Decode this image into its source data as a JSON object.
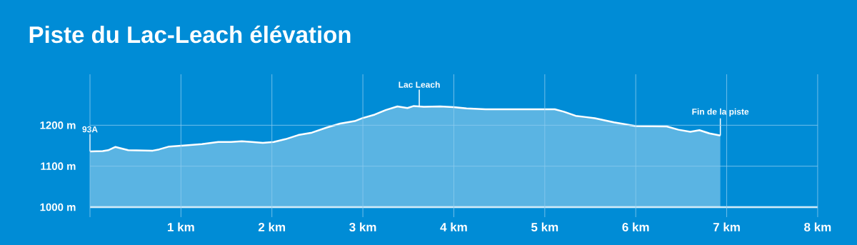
{
  "chart_data": {
    "type": "area",
    "title": "Piste du Lac-Leach élévation",
    "x": [
      0,
      0.14,
      0.2,
      0.28,
      0.42,
      0.69,
      0.76,
      0.87,
      1.0,
      1.23,
      1.41,
      1.55,
      1.67,
      1.78,
      1.9,
      2.02,
      2.15,
      2.29,
      2.44,
      2.61,
      2.75,
      2.91,
      2.99,
      3.13,
      3.25,
      3.38,
      3.49,
      3.56,
      3.67,
      3.85,
      4.0,
      4.14,
      4.35,
      4.77,
      5.11,
      5.21,
      5.34,
      5.45,
      5.55,
      5.76,
      6.0,
      6.34,
      6.47,
      6.6,
      6.7,
      6.81,
      6.93
    ],
    "values": [
      1136,
      1137,
      1139,
      1147,
      1139,
      1138,
      1141,
      1148,
      1150,
      1154,
      1159,
      1159,
      1161,
      1159,
      1157,
      1159,
      1166,
      1176,
      1182,
      1195,
      1204,
      1210,
      1217,
      1226,
      1237,
      1246,
      1242,
      1247,
      1245,
      1246,
      1244,
      1241,
      1239,
      1239,
      1239,
      1233,
      1223,
      1220,
      1217,
      1207,
      1198,
      1197,
      1189,
      1184,
      1188,
      1180,
      1175
    ],
    "color": "#5ab4e3",
    "xlim": [
      0,
      8
    ],
    "ylim": [
      1000,
      1300
    ],
    "xticks": [
      {
        "value": 0,
        "label": null
      },
      {
        "value": 1,
        "label": "1 km"
      },
      {
        "value": 2,
        "label": "2 km"
      },
      {
        "value": 3,
        "label": "3 km"
      },
      {
        "value": 4,
        "label": "4 km"
      },
      {
        "value": 5,
        "label": "5 km"
      },
      {
        "value": 6,
        "label": "6 km"
      },
      {
        "value": 7,
        "label": "7 km"
      },
      {
        "value": 8,
        "label": "8 km"
      }
    ],
    "yticks": [
      {
        "value": 1000,
        "label": "1000 m"
      },
      {
        "value": 1100,
        "label": "1100 m"
      },
      {
        "value": 1200,
        "label": "1200 m"
      }
    ],
    "grid": true,
    "annotations": [
      {
        "text": "93A",
        "x": 0,
        "y": 1136
      },
      {
        "text": "Lac Leach",
        "x": 3.62,
        "y": 1245
      },
      {
        "text": "Fin de la piste",
        "x": 6.93,
        "y": 1175
      }
    ]
  }
}
